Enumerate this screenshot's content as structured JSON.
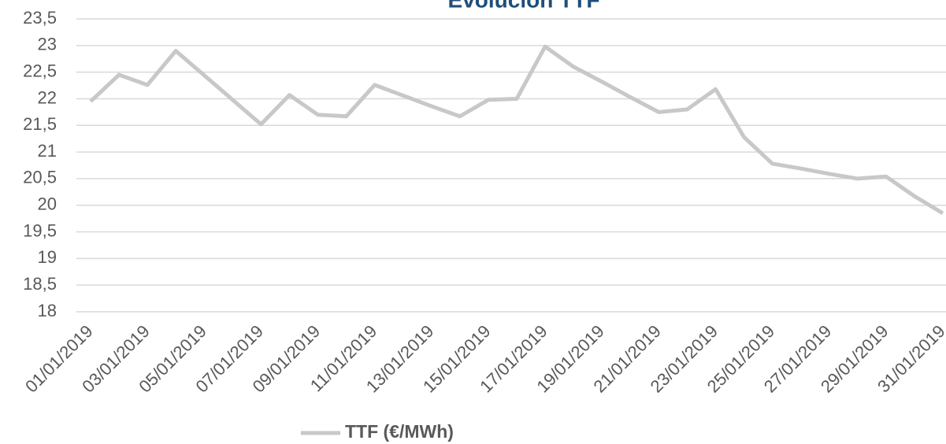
{
  "chart_data": {
    "type": "line",
    "title": "Evolución TTF",
    "categories": [
      "01/01/2019",
      null,
      "03/01/2019",
      null,
      "05/01/2019",
      null,
      "07/01/2019",
      null,
      "09/01/2019",
      null,
      "11/01/2019",
      null,
      "13/01/2019",
      null,
      "15/01/2019",
      null,
      "17/01/2019",
      null,
      "19/01/2019",
      null,
      "21/01/2019",
      null,
      "23/01/2019",
      null,
      "25/01/2019",
      null,
      "27/01/2019",
      null,
      "29/01/2019",
      null,
      "31/01/2019"
    ],
    "series": [
      {
        "name": "TTF (€/MWh)",
        "color": "#c8c8c8",
        "values": [
          21.95,
          22.45,
          22.26,
          22.9,
          22.44,
          21.98,
          21.52,
          22.07,
          21.7,
          21.67,
          22.26,
          22.06,
          21.86,
          21.67,
          21.98,
          22.0,
          22.98,
          22.6,
          22.32,
          22.03,
          21.75,
          21.8,
          22.18,
          21.28,
          20.78,
          20.69,
          20.59,
          20.5,
          20.54,
          20.17,
          19.85
        ]
      }
    ],
    "ylim": [
      18,
      23.5
    ],
    "yticks": [
      18,
      {
        "value": 18.5,
        "label": "18,5"
      },
      19,
      {
        "value": 19.5,
        "label": "19,5"
      },
      20,
      {
        "value": 20.5,
        "label": "20,5"
      },
      21,
      {
        "value": 21.5,
        "label": "21,5"
      },
      22,
      {
        "value": 22.5,
        "label": "22,5"
      },
      23,
      {
        "value": 23.5,
        "label": "23,5"
      }
    ],
    "grid": true,
    "legend": "bottom"
  }
}
